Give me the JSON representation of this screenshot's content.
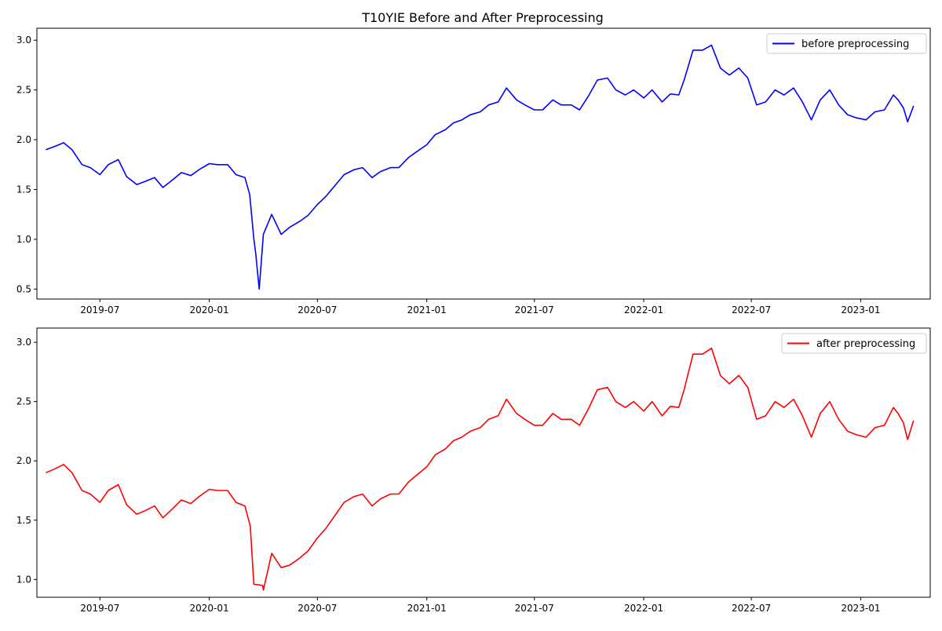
{
  "title": "T10YIE Before and After Preprocessing",
  "chart_data": [
    {
      "type": "line",
      "title": "",
      "xlabel": "",
      "ylabel": "",
      "xlim": [
        "2019-03-17",
        "2023-04-28"
      ],
      "ylim": [
        0.4,
        3.12
      ],
      "x_ticks": [
        "2019-07",
        "2020-01",
        "2020-07",
        "2021-01",
        "2021-07",
        "2022-01",
        "2022-07",
        "2023-01"
      ],
      "y_ticks": [
        "0.5",
        "1.0",
        "1.5",
        "2.0",
        "2.5",
        "3.0"
      ],
      "grid": false,
      "legend_position": "top-right",
      "series": [
        {
          "name": "before preprocessing",
          "color": "#0000ff",
          "x": [
            "2019-04-01",
            "2019-04-15",
            "2019-05-01",
            "2019-05-15",
            "2019-06-01",
            "2019-06-15",
            "2019-07-01",
            "2019-07-15",
            "2019-08-01",
            "2019-08-15",
            "2019-09-01",
            "2019-09-15",
            "2019-10-01",
            "2019-10-15",
            "2019-11-01",
            "2019-11-15",
            "2019-12-01",
            "2019-12-15",
            "2020-01-01",
            "2020-01-15",
            "2020-02-01",
            "2020-02-15",
            "2020-03-01",
            "2020-03-09",
            "2020-03-16",
            "2020-03-19",
            "2020-03-25",
            "2020-04-01",
            "2020-04-15",
            "2020-05-01",
            "2020-05-15",
            "2020-06-01",
            "2020-06-15",
            "2020-07-01",
            "2020-07-15",
            "2020-08-01",
            "2020-08-15",
            "2020-09-01",
            "2020-09-15",
            "2020-10-01",
            "2020-10-15",
            "2020-11-01",
            "2020-11-15",
            "2020-12-01",
            "2020-12-15",
            "2021-01-01",
            "2021-01-15",
            "2021-02-01",
            "2021-02-15",
            "2021-03-01",
            "2021-03-15",
            "2021-04-01",
            "2021-04-15",
            "2021-05-01",
            "2021-05-15",
            "2021-06-01",
            "2021-06-15",
            "2021-07-01",
            "2021-07-15",
            "2021-08-01",
            "2021-08-15",
            "2021-09-01",
            "2021-09-15",
            "2021-10-01",
            "2021-10-15",
            "2021-11-01",
            "2021-11-15",
            "2021-12-01",
            "2021-12-15",
            "2022-01-01",
            "2022-01-15",
            "2022-02-01",
            "2022-02-15",
            "2022-03-01",
            "2022-03-10",
            "2022-03-25",
            "2022-04-10",
            "2022-04-25",
            "2022-05-10",
            "2022-05-25",
            "2022-06-10",
            "2022-06-25",
            "2022-07-10",
            "2022-07-25",
            "2022-08-10",
            "2022-08-25",
            "2022-09-10",
            "2022-09-25",
            "2022-10-10",
            "2022-10-25",
            "2022-11-10",
            "2022-11-25",
            "2022-12-10",
            "2022-12-25",
            "2023-01-10",
            "2023-01-25",
            "2023-02-10",
            "2023-02-25",
            "2023-03-05",
            "2023-03-14",
            "2023-03-21",
            "2023-03-31"
          ],
          "y": [
            1.9,
            1.93,
            1.97,
            1.9,
            1.75,
            1.72,
            1.65,
            1.75,
            1.8,
            1.63,
            1.55,
            1.58,
            1.62,
            1.52,
            1.6,
            1.67,
            1.64,
            1.7,
            1.76,
            1.75,
            1.75,
            1.65,
            1.62,
            1.45,
            1.0,
            0.87,
            0.5,
            1.05,
            1.25,
            1.05,
            1.12,
            1.18,
            1.24,
            1.35,
            1.43,
            1.55,
            1.65,
            1.7,
            1.72,
            1.62,
            1.68,
            1.72,
            1.72,
            1.82,
            1.88,
            1.95,
            2.05,
            2.1,
            2.17,
            2.2,
            2.25,
            2.28,
            2.35,
            2.38,
            2.52,
            2.4,
            2.35,
            2.3,
            2.3,
            2.4,
            2.35,
            2.35,
            2.3,
            2.45,
            2.6,
            2.62,
            2.5,
            2.45,
            2.5,
            2.42,
            2.5,
            2.38,
            2.46,
            2.45,
            2.6,
            2.9,
            2.9,
            2.95,
            2.72,
            2.65,
            2.72,
            2.62,
            2.35,
            2.38,
            2.5,
            2.45,
            2.52,
            2.38,
            2.2,
            2.4,
            2.5,
            2.35,
            2.25,
            2.22,
            2.2,
            2.28,
            2.3,
            2.45,
            2.4,
            2.32,
            2.18,
            2.34
          ]
        }
      ]
    },
    {
      "type": "line",
      "title": "",
      "xlabel": "",
      "ylabel": "",
      "xlim": [
        "2019-03-17",
        "2023-04-28"
      ],
      "ylim": [
        0.85,
        3.12
      ],
      "x_ticks": [
        "2019-07",
        "2020-01",
        "2020-07",
        "2021-01",
        "2021-07",
        "2022-01",
        "2022-07",
        "2023-01"
      ],
      "y_ticks": [
        "1.0",
        "1.5",
        "2.0",
        "2.5",
        "3.0"
      ],
      "grid": false,
      "legend_position": "top-right",
      "series": [
        {
          "name": "after preprocessing",
          "color": "#ff0000",
          "x": [
            "2019-04-01",
            "2019-04-15",
            "2019-05-01",
            "2019-05-15",
            "2019-06-01",
            "2019-06-15",
            "2019-07-01",
            "2019-07-15",
            "2019-08-01",
            "2019-08-15",
            "2019-09-01",
            "2019-09-15",
            "2019-10-01",
            "2019-10-15",
            "2019-11-01",
            "2019-11-15",
            "2019-12-01",
            "2019-12-15",
            "2020-01-01",
            "2020-01-15",
            "2020-02-01",
            "2020-02-15",
            "2020-03-01",
            "2020-03-10",
            "2020-03-16",
            "2020-03-31",
            "2020-04-01",
            "2020-04-15",
            "2020-05-01",
            "2020-05-15",
            "2020-06-01",
            "2020-06-15",
            "2020-07-01",
            "2020-07-15",
            "2020-08-01",
            "2020-08-15",
            "2020-09-01",
            "2020-09-15",
            "2020-10-01",
            "2020-10-15",
            "2020-11-01",
            "2020-11-15",
            "2020-12-01",
            "2020-12-15",
            "2021-01-01",
            "2021-01-15",
            "2021-02-01",
            "2021-02-15",
            "2021-03-01",
            "2021-03-15",
            "2021-04-01",
            "2021-04-15",
            "2021-05-01",
            "2021-05-15",
            "2021-06-01",
            "2021-06-15",
            "2021-07-01",
            "2021-07-15",
            "2021-08-01",
            "2021-08-15",
            "2021-09-01",
            "2021-09-15",
            "2021-10-01",
            "2021-10-15",
            "2021-11-01",
            "2021-11-15",
            "2021-12-01",
            "2021-12-15",
            "2022-01-01",
            "2022-01-15",
            "2022-02-01",
            "2022-02-15",
            "2022-03-01",
            "2022-03-10",
            "2022-03-25",
            "2022-04-10",
            "2022-04-25",
            "2022-05-10",
            "2022-05-25",
            "2022-06-10",
            "2022-06-25",
            "2022-07-10",
            "2022-07-25",
            "2022-08-10",
            "2022-08-25",
            "2022-09-10",
            "2022-09-25",
            "2022-10-10",
            "2022-10-25",
            "2022-11-10",
            "2022-11-25",
            "2022-12-10",
            "2022-12-25",
            "2023-01-10",
            "2023-01-25",
            "2023-02-10",
            "2023-02-25",
            "2023-03-05",
            "2023-03-14",
            "2023-03-21",
            "2023-03-31"
          ],
          "y": [
            1.9,
            1.93,
            1.97,
            1.9,
            1.75,
            1.72,
            1.65,
            1.75,
            1.8,
            1.63,
            1.55,
            1.58,
            1.62,
            1.52,
            1.6,
            1.67,
            1.64,
            1.7,
            1.76,
            1.75,
            1.75,
            1.65,
            1.62,
            1.45,
            0.96,
            0.95,
            0.91,
            1.22,
            1.1,
            1.12,
            1.18,
            1.24,
            1.35,
            1.43,
            1.55,
            1.65,
            1.7,
            1.72,
            1.62,
            1.68,
            1.72,
            1.72,
            1.82,
            1.88,
            1.95,
            2.05,
            2.1,
            2.17,
            2.2,
            2.25,
            2.28,
            2.35,
            2.38,
            2.52,
            2.4,
            2.35,
            2.3,
            2.3,
            2.4,
            2.35,
            2.35,
            2.3,
            2.45,
            2.6,
            2.62,
            2.5,
            2.45,
            2.5,
            2.42,
            2.5,
            2.38,
            2.46,
            2.45,
            2.6,
            2.9,
            2.9,
            2.95,
            2.72,
            2.65,
            2.72,
            2.62,
            2.35,
            2.38,
            2.5,
            2.45,
            2.52,
            2.38,
            2.2,
            2.4,
            2.5,
            2.35,
            2.25,
            2.22,
            2.2,
            2.28,
            2.3,
            2.45,
            2.4,
            2.32,
            2.18,
            2.34
          ]
        }
      ]
    }
  ]
}
